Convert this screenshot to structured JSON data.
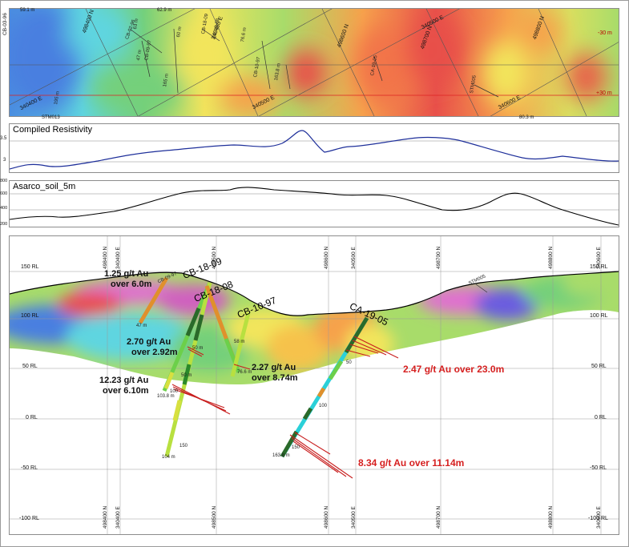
{
  "plan_map": {
    "top_left_label": "59.1 m",
    "top_label": "62.9 m",
    "left_vertical_label": "CB-03-96",
    "bottom_left_label": "STM013",
    "bottom_right_label": "80.3 m",
    "right_labels": [
      "-30 m",
      "+30 m"
    ],
    "grid_labels": [
      "498400 N",
      "340400 E",
      "498600 N",
      "498700 N",
      "340500 E",
      "498800 N",
      "340500 E",
      "340600 E",
      "340400 E"
    ],
    "hole_labels": [
      "CB-02-96",
      "CB-09-97",
      "CB-10-97",
      "CB-18-09",
      "CB-18-08",
      "CA-19-05",
      "STM005"
    ],
    "depth_labels": [
      "195 m",
      "165 m",
      "163.8 m",
      "76.6 m",
      "63 m",
      "47 m",
      "60 m"
    ],
    "colors": {
      "blue": "#4a8fe0",
      "cyan": "#5ed5e0",
      "green": "#74d07a",
      "yellow": "#f2e55c",
      "orange": "#f6a24c",
      "red": "#e8504a"
    }
  },
  "resistivity": {
    "title": "Compiled Resistivity",
    "y_ticks": [
      "3.5",
      "3"
    ],
    "line_color": "#1e2f9a"
  },
  "soil": {
    "title": "Asarco_soil_5m",
    "y_ticks": [
      "800",
      "600",
      "400",
      "200"
    ],
    "line_color": "#000000"
  },
  "section": {
    "rl_labels": [
      "150 RL",
      "100 RL",
      "50 RL",
      "0 RL",
      "-50 RL",
      "-100 RL"
    ],
    "grid_labels": [
      "498400 N",
      "340400 E",
      "498500 N",
      "498600 N",
      "340500 E",
      "498700 N",
      "498800 N",
      "340600 E"
    ],
    "holes": [
      {
        "name": "CB-18-09"
      },
      {
        "name": "CB-18-08"
      },
      {
        "name": "CB-10-97"
      },
      {
        "name": "CA-19-05"
      }
    ],
    "small_labels": [
      "CB-09-97",
      "STM005",
      "47 m",
      "50 m",
      "50 m",
      "58 m",
      "76.6 m",
      "103.8 m",
      "100",
      "100",
      "150",
      "150",
      "104 m",
      "50",
      "163.8 m"
    ],
    "assays": [
      {
        "line1": "1.25 g/t Au",
        "line2": "over 6.0m",
        "color": "black"
      },
      {
        "line1": "2.70 g/t Au",
        "line2": "over 2.92m",
        "color": "black"
      },
      {
        "line1": "12.23 g/t Au",
        "line2": "over 6.10m",
        "color": "black"
      },
      {
        "line1": "2.27 g/t Au",
        "line2": "over 8.74m",
        "color": "black"
      },
      {
        "line1": "2.47 g/t Au over 23.0m",
        "line2": "",
        "color": "red"
      },
      {
        "line1": "8.34 g/t Au over 11.14m",
        "line2": "",
        "color": "red"
      }
    ]
  }
}
